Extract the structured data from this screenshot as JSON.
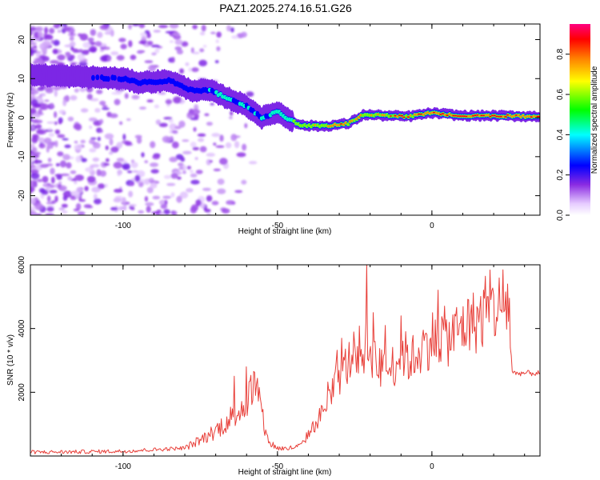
{
  "title": "PAZ1.2025.274.16.51.G26",
  "chart_data": [
    {
      "type": "heatmap",
      "xlabel": "Height of straight line (km)",
      "ylabel": "Frequency (Hz)",
      "xlim": [
        -130,
        35
      ],
      "ylim": [
        -25,
        24
      ],
      "xticks": [
        "-100",
        "-50",
        "0"
      ],
      "yticks": [
        "20",
        "10",
        "0",
        "-10",
        "-20"
      ],
      "ridge_x": [
        -130,
        -100,
        -95,
        -85,
        -78,
        -72,
        -66,
        -60,
        -55,
        -50,
        -46,
        -42,
        -35,
        -27,
        -22,
        -15,
        -8,
        0,
        10,
        20,
        35
      ],
      "ridge_freq": [
        11,
        10,
        9,
        9.5,
        7,
        7,
        5,
        3,
        0,
        1.5,
        -0.5,
        -2,
        -2.2,
        -1.5,
        0.8,
        0.5,
        0.3,
        1.2,
        0.5,
        0.5,
        0.3
      ],
      "ridge_amplitude": [
        0.15,
        0.3,
        0.35,
        0.3,
        0.3,
        0.45,
        0.5,
        0.45,
        0.45,
        0.5,
        0.6,
        0.7,
        0.8,
        0.85,
        0.7,
        0.85,
        0.9,
        0.95,
        0.95,
        0.95,
        0.9
      ],
      "colorbar": {
        "label": "Normalized spectral amplitude",
        "ticks": [
          "0.0",
          "0.2",
          "0.4",
          "0.6",
          "0.8"
        ],
        "range": [
          0,
          0.95
        ]
      }
    },
    {
      "type": "line",
      "xlabel": "Height of straight line (km)",
      "ylabel": "SNR (10 * v/v)",
      "xlim": [
        -130,
        35
      ],
      "ylim": [
        0,
        6000
      ],
      "xticks": [
        "-100",
        "-50",
        "0"
      ],
      "yticks": [
        "6000",
        "4000",
        "2000"
      ],
      "series": [
        {
          "name": "SNR",
          "color": "#e8403a",
          "x": [
            -130,
            -115,
            -100,
            -90,
            -80,
            -75,
            -70,
            -65,
            -60,
            -57,
            -55,
            -53,
            -50,
            -47,
            -45,
            -42,
            -40,
            -37,
            -35,
            -32,
            -30,
            -28,
            -25,
            -23,
            -21,
            -19,
            -17,
            -15,
            -12,
            -10,
            -7,
            -5,
            -3,
            0,
            3,
            6,
            9,
            12,
            15,
            18,
            20,
            23,
            25,
            26,
            28,
            35
          ],
          "y": [
            120,
            130,
            150,
            200,
            250,
            500,
            800,
            1200,
            1700,
            2300,
            1200,
            450,
            250,
            230,
            260,
            350,
            700,
            1100,
            1500,
            2000,
            2500,
            2800,
            3200,
            3300,
            3400,
            3200,
            2800,
            2600,
            2900,
            3300,
            3000,
            3200,
            3400,
            3700,
            3800,
            3700,
            4000,
            4100,
            4300,
            4500,
            4600,
            4700,
            4800,
            2600,
            2600,
            2600
          ],
          "spikes": [
            {
              "x": -60,
              "y": 2800
            },
            {
              "x": -25,
              "y": 3500
            },
            {
              "x": -21,
              "y": 6000
            },
            {
              "x": -19,
              "y": 4500
            },
            {
              "x": -15,
              "y": 4100
            },
            {
              "x": -10,
              "y": 4400
            },
            {
              "x": 12,
              "y": 4900
            },
            {
              "x": 18,
              "y": 5000
            },
            {
              "x": 24,
              "y": 5150
            }
          ]
        }
      ]
    }
  ]
}
